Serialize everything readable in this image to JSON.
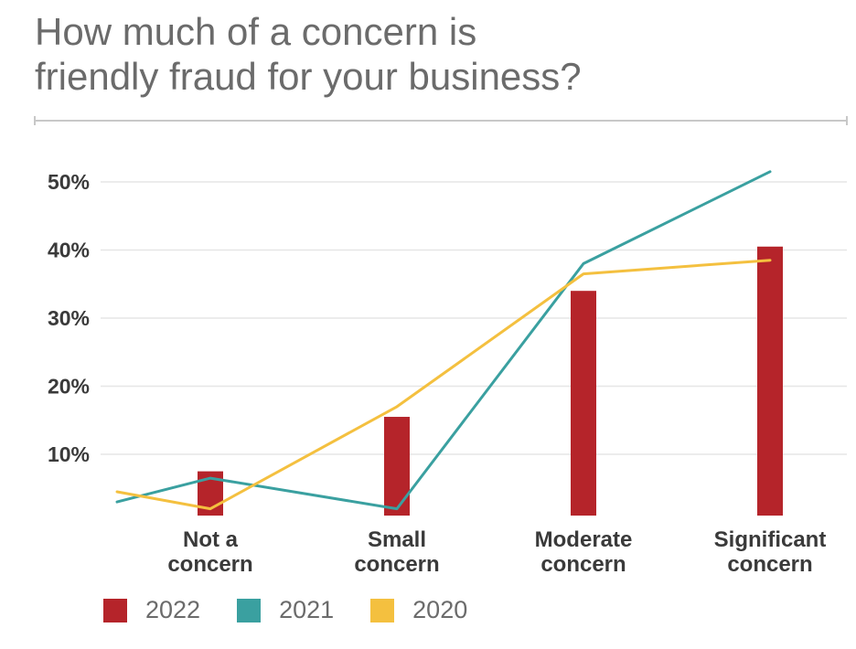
{
  "title_lines": [
    "How much of a concern is",
    "friendly fraud for your business?"
  ],
  "colors": {
    "2022": "#b5242a",
    "2021": "#3aa0a0",
    "2020": "#f4c03f",
    "grid": "#e6e6e6",
    "rule": "#c8c8c8"
  },
  "chart_data": {
    "type": "bar",
    "title": "How much of a concern is friendly fraud for your business?",
    "categories": [
      [
        "Not a",
        "concern"
      ],
      [
        "Small",
        "concern"
      ],
      [
        "Moderate",
        "concern"
      ],
      [
        "Significant",
        "concern"
      ]
    ],
    "ylim": [
      1,
      50
    ],
    "yticks": [
      10,
      20,
      30,
      40,
      50
    ],
    "ytick_labels": [
      "10%",
      "20%",
      "30%",
      "40%",
      "50%"
    ],
    "grid": true,
    "legend_position": "bottom",
    "series": [
      {
        "name": "2022",
        "kind": "bar",
        "values": [
          7.5,
          15.5,
          34,
          40.5
        ]
      },
      {
        "name": "2021",
        "kind": "line",
        "points": [
          [
            -0.5,
            3
          ],
          [
            0,
            6.5
          ],
          [
            1,
            2
          ],
          [
            2,
            38
          ],
          [
            3,
            51.5
          ]
        ]
      },
      {
        "name": "2020",
        "kind": "line",
        "points": [
          [
            -0.5,
            4.5
          ],
          [
            0,
            2
          ],
          [
            1,
            17
          ],
          [
            2,
            36.5
          ],
          [
            3,
            38.5
          ]
        ]
      }
    ]
  }
}
